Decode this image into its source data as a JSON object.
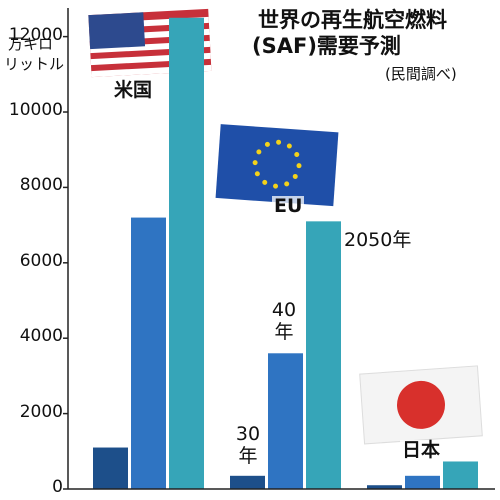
{
  "chart_data": {
    "type": "bar",
    "title": [
      "世界の再生航空燃料",
      "(SAF)需要予測"
    ],
    "subtitle": "(民間調べ)",
    "y_label": [
      "万キロ",
      "リットル"
    ],
    "categories": [
      "米国",
      "EU",
      "日本"
    ],
    "series": [
      {
        "name": "30年",
        "color": "#1d4f8a",
        "values": [
          1100,
          350,
          100
        ]
      },
      {
        "name": "40年",
        "color": "#2f74c2",
        "values": [
          7200,
          3600,
          350
        ]
      },
      {
        "name": "2050年",
        "color": "#36a5b8",
        "values": [
          12500,
          7100,
          730
        ]
      }
    ],
    "ylim": [
      0,
      12600
    ],
    "yticks": [
      0,
      2000,
      4000,
      6000,
      8000,
      10000,
      12000
    ]
  }
}
